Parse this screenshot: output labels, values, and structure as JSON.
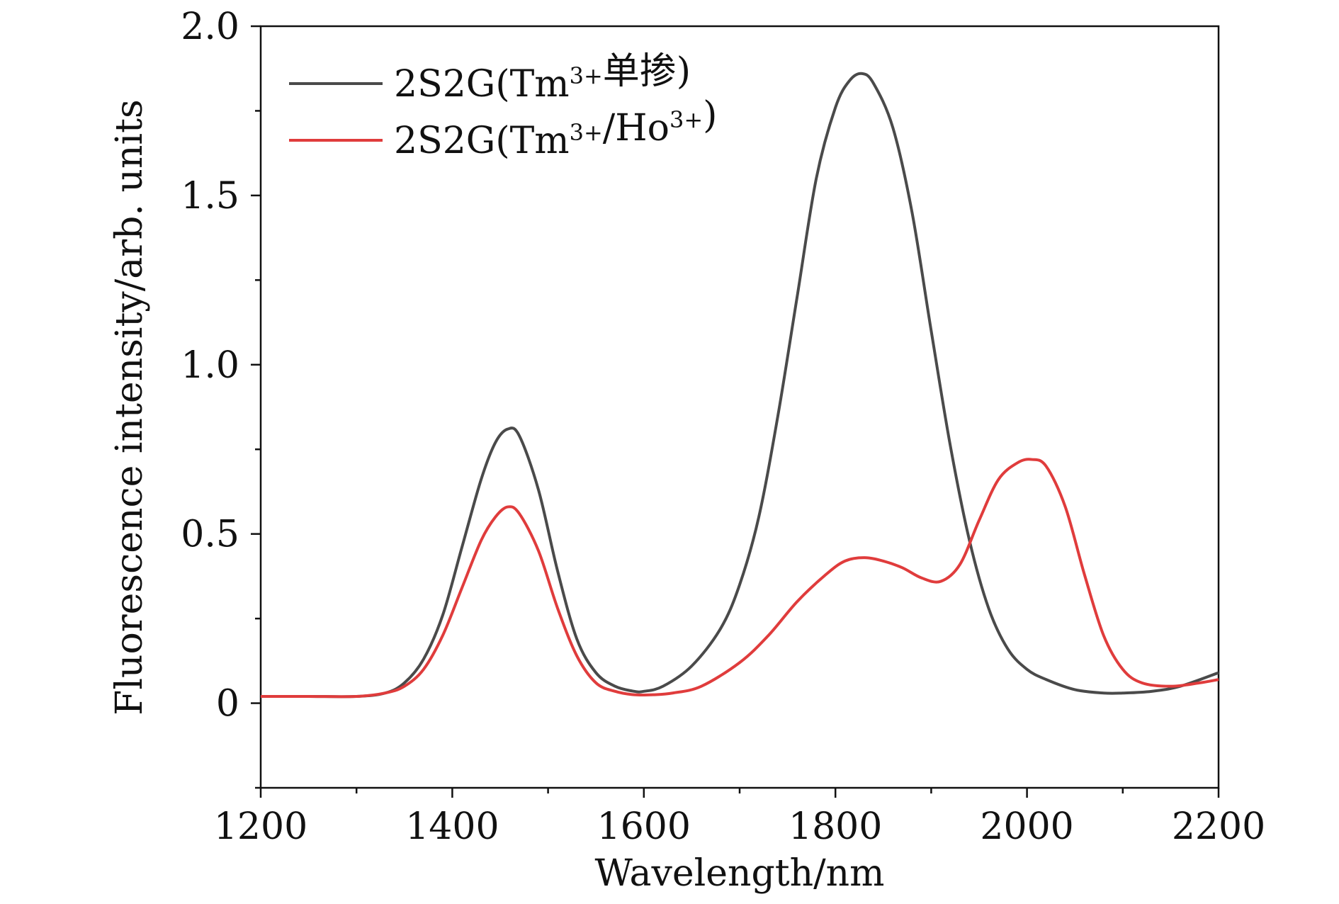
{
  "chart_data": {
    "type": "line",
    "xlabel": "Wavelength/nm",
    "ylabel": "Fluorescence intensity/arb. units",
    "xlim": [
      1200,
      2200
    ],
    "ylim": [
      -0.25,
      2.0
    ],
    "x_ticks": [
      1200,
      1400,
      1600,
      1800,
      2000,
      2200
    ],
    "x_tick_labels": [
      "1200",
      "1400",
      "1600",
      "1800",
      "2000",
      "2200"
    ],
    "y_ticks": [
      0,
      0.5,
      1.0,
      1.5,
      2.0
    ],
    "y_tick_labels": [
      "0",
      "0.5",
      "1.0",
      "1.5",
      "2.0"
    ],
    "legend_position": "top-left",
    "grid": false,
    "series": [
      {
        "name": "2S2G(Tm3+单掺)",
        "color": "#4a4a4a",
        "legend": {
          "pre": "2S2G(Tm",
          "sup": "3+",
          "post": "单掺)"
        },
        "x": [
          1200,
          1250,
          1300,
          1330,
          1350,
          1370,
          1390,
          1410,
          1430,
          1445,
          1458,
          1470,
          1490,
          1510,
          1530,
          1550,
          1570,
          1590,
          1600,
          1620,
          1650,
          1680,
          1700,
          1720,
          1740,
          1760,
          1780,
          1800,
          1815,
          1828,
          1840,
          1860,
          1880,
          1900,
          1920,
          1940,
          1960,
          1980,
          2000,
          2020,
          2050,
          2080,
          2100,
          2130,
          2160,
          2200
        ],
        "y": [
          0.02,
          0.02,
          0.02,
          0.03,
          0.06,
          0.13,
          0.26,
          0.46,
          0.66,
          0.77,
          0.81,
          0.79,
          0.63,
          0.39,
          0.19,
          0.09,
          0.05,
          0.035,
          0.035,
          0.05,
          0.11,
          0.22,
          0.35,
          0.55,
          0.85,
          1.2,
          1.55,
          1.76,
          1.84,
          1.86,
          1.83,
          1.7,
          1.45,
          1.1,
          0.76,
          0.48,
          0.28,
          0.16,
          0.1,
          0.07,
          0.04,
          0.03,
          0.03,
          0.035,
          0.05,
          0.09
        ]
      },
      {
        "name": "2S2G(Tm3+/Ho3+)",
        "color": "#e03c3c",
        "legend": {
          "pre": "2S2G(Tm",
          "sup": "3+",
          "mid": "/Ho",
          "sup2": "3+",
          "post": ")"
        },
        "x": [
          1200,
          1250,
          1300,
          1330,
          1350,
          1370,
          1390,
          1410,
          1430,
          1445,
          1458,
          1470,
          1490,
          1510,
          1530,
          1550,
          1570,
          1590,
          1610,
          1630,
          1660,
          1700,
          1730,
          1760,
          1790,
          1810,
          1830,
          1850,
          1870,
          1890,
          1910,
          1930,
          1950,
          1970,
          1990,
          2005,
          2020,
          2040,
          2060,
          2080,
          2100,
          2120,
          2150,
          2180,
          2200
        ],
        "y": [
          0.02,
          0.02,
          0.02,
          0.03,
          0.05,
          0.1,
          0.2,
          0.34,
          0.48,
          0.55,
          0.58,
          0.56,
          0.45,
          0.28,
          0.14,
          0.06,
          0.035,
          0.025,
          0.025,
          0.03,
          0.05,
          0.12,
          0.2,
          0.3,
          0.38,
          0.42,
          0.43,
          0.42,
          0.4,
          0.37,
          0.36,
          0.41,
          0.54,
          0.66,
          0.71,
          0.72,
          0.7,
          0.58,
          0.38,
          0.2,
          0.1,
          0.06,
          0.05,
          0.06,
          0.07
        ]
      }
    ]
  }
}
